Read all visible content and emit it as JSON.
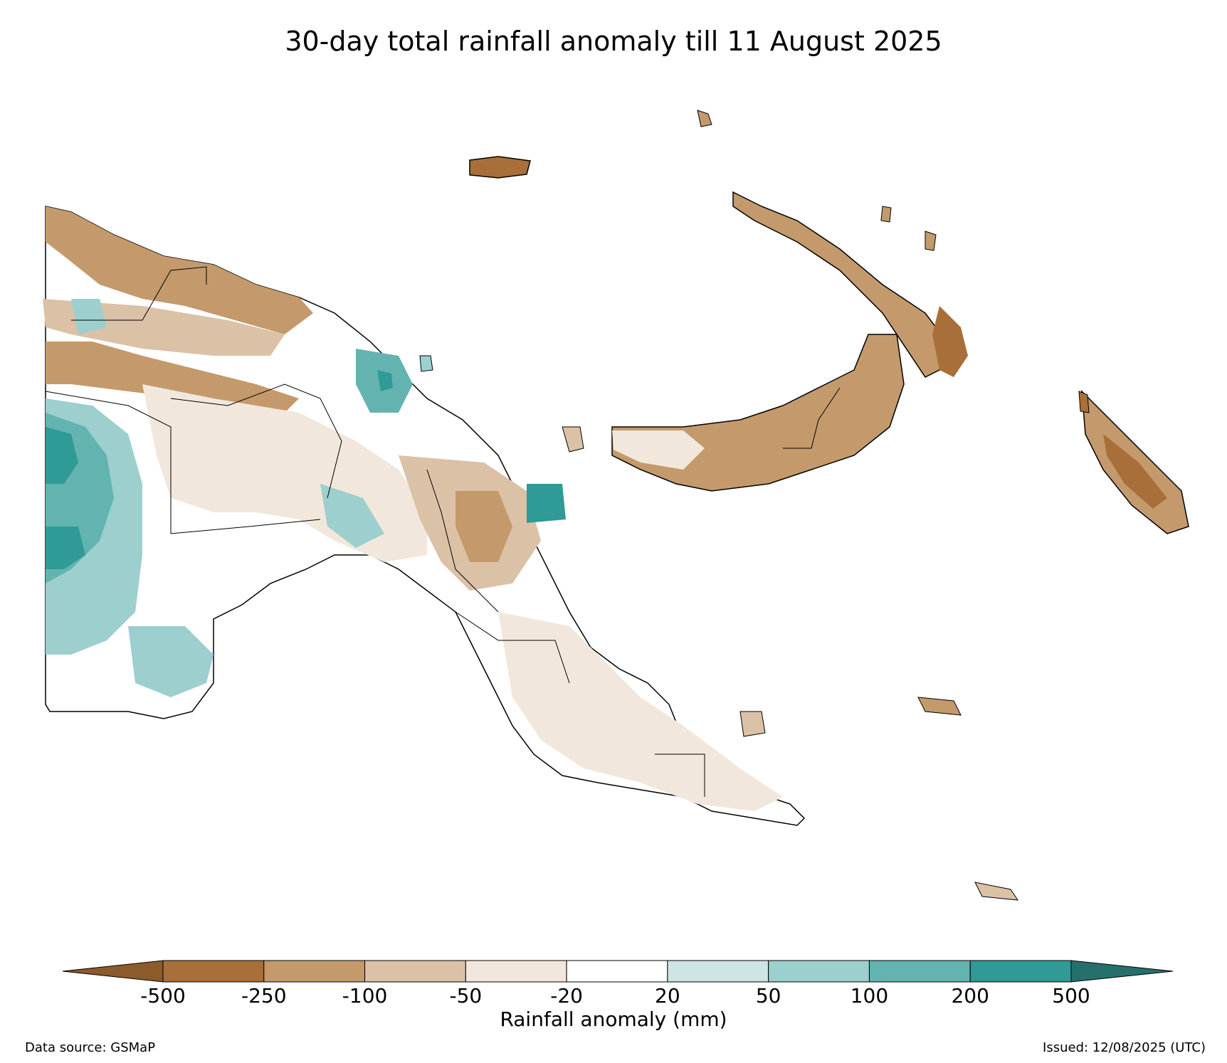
{
  "title": "30-day total rainfall anomaly till 11 August 2025",
  "colorbar": {
    "label": "Rainfall anomaly (mm)",
    "ticks": [
      "-500",
      "-250",
      "-100",
      "-50",
      "-20",
      "20",
      "50",
      "100",
      "200",
      "500"
    ],
    "colors": [
      "#a86f3a",
      "#c49a6c",
      "#dbc1a6",
      "#f2e7dc",
      "#ffffff",
      "#cde5e4",
      "#9ccfcd",
      "#63b4b1",
      "#2f9a96"
    ],
    "extend_low_color": "#8c5a2b",
    "extend_high_color": "#25706d"
  },
  "footer": {
    "source": "Data source: GSMaP",
    "issued": "Issued: 12/08/2025 (UTC)"
  }
}
